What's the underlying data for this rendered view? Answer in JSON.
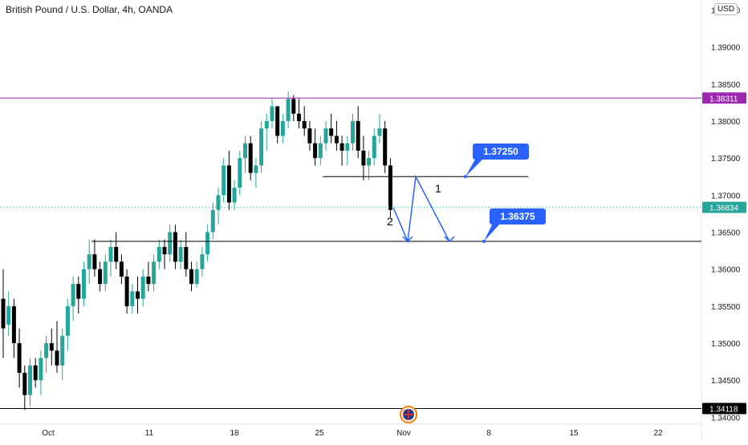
{
  "header": {
    "title": "British Pound / U.S. Dollar, 4h, OANDA",
    "currency": "USD"
  },
  "axis": {
    "y_ticks": [
      "1.34000",
      "1.34500",
      "1.35000",
      "1.35500",
      "1.36000",
      "1.36500",
      "1.37000",
      "1.37500",
      "1.38000",
      "1.38500",
      "1.39000",
      "1.39500"
    ],
    "x_ticks": [
      "Oct",
      "11",
      "18",
      "25",
      "Nov",
      "8",
      "15",
      "22"
    ]
  },
  "price_labels": {
    "resistance": "1.38311",
    "current": "1.36834",
    "support_low": "1.34118"
  },
  "callouts": {
    "level_1": "1.37250",
    "level_2": "1.36375"
  },
  "annotations": {
    "step_1": "1",
    "step_2": "2"
  },
  "colors": {
    "up": "#26a69a",
    "down": "#000000",
    "resistance": "#9c27b0",
    "current": "#26a69a",
    "projection": "#2962ff"
  },
  "chart_data": {
    "type": "candlestick",
    "title": "British Pound / U.S. Dollar, 4h, OANDA",
    "ylim": [
      1.3395,
      1.3957
    ],
    "x_axis": [
      "Oct",
      "11",
      "18",
      "25",
      "Nov",
      "8",
      "15",
      "22"
    ],
    "candles": [
      [
        1.356,
        1.36,
        1.348,
        1.352
      ],
      [
        1.3525,
        1.357,
        1.351,
        1.355
      ],
      [
        1.355,
        1.356,
        1.348,
        1.35
      ],
      [
        1.35,
        1.352,
        1.344,
        1.346
      ],
      [
        1.346,
        1.347,
        1.341,
        1.343
      ],
      [
        1.343,
        1.348,
        1.3415,
        1.347
      ],
      [
        1.347,
        1.348,
        1.344,
        1.345
      ],
      [
        1.345,
        1.349,
        1.343,
        1.348
      ],
      [
        1.348,
        1.351,
        1.346,
        1.35
      ],
      [
        1.35,
        1.352,
        1.347,
        1.349
      ],
      [
        1.349,
        1.353,
        1.346,
        1.347
      ],
      [
        1.347,
        1.352,
        1.345,
        1.351
      ],
      [
        1.351,
        1.356,
        1.349,
        1.355
      ],
      [
        1.355,
        1.359,
        1.353,
        1.358
      ],
      [
        1.358,
        1.359,
        1.354,
        1.356
      ],
      [
        1.356,
        1.361,
        1.355,
        1.36
      ],
      [
        1.36,
        1.364,
        1.358,
        1.362
      ],
      [
        1.362,
        1.364,
        1.359,
        1.36
      ],
      [
        1.36,
        1.361,
        1.357,
        1.358
      ],
      [
        1.358,
        1.362,
        1.357,
        1.361
      ],
      [
        1.361,
        1.364,
        1.359,
        1.363
      ],
      [
        1.363,
        1.365,
        1.36,
        1.361
      ],
      [
        1.361,
        1.362,
        1.358,
        1.359
      ],
      [
        1.359,
        1.36,
        1.354,
        1.355
      ],
      [
        1.355,
        1.358,
        1.354,
        1.357
      ],
      [
        1.357,
        1.359,
        1.354,
        1.356
      ],
      [
        1.356,
        1.36,
        1.355,
        1.359
      ],
      [
        1.359,
        1.361,
        1.357,
        1.358
      ],
      [
        1.358,
        1.362,
        1.357,
        1.361
      ],
      [
        1.361,
        1.364,
        1.36,
        1.363
      ],
      [
        1.363,
        1.364,
        1.36,
        1.362
      ],
      [
        1.362,
        1.366,
        1.361,
        1.365
      ],
      [
        1.365,
        1.366,
        1.36,
        1.361
      ],
      [
        1.361,
        1.364,
        1.36,
        1.363
      ],
      [
        1.363,
        1.365,
        1.359,
        1.36
      ],
      [
        1.36,
        1.361,
        1.357,
        1.358
      ],
      [
        1.358,
        1.361,
        1.3575,
        1.36
      ],
      [
        1.36,
        1.363,
        1.359,
        1.362
      ],
      [
        1.362,
        1.366,
        1.361,
        1.365
      ],
      [
        1.365,
        1.369,
        1.364,
        1.368
      ],
      [
        1.368,
        1.371,
        1.366,
        1.37
      ],
      [
        1.37,
        1.375,
        1.369,
        1.374
      ],
      [
        1.374,
        1.376,
        1.368,
        1.369
      ],
      [
        1.369,
        1.372,
        1.368,
        1.371
      ],
      [
        1.371,
        1.376,
        1.37,
        1.375
      ],
      [
        1.375,
        1.378,
        1.373,
        1.377
      ],
      [
        1.377,
        1.378,
        1.372,
        1.373
      ],
      [
        1.373,
        1.375,
        1.371,
        1.374
      ],
      [
        1.374,
        1.38,
        1.373,
        1.379
      ],
      [
        1.379,
        1.381,
        1.376,
        1.38
      ],
      [
        1.38,
        1.383,
        1.379,
        1.382
      ],
      [
        1.382,
        1.382,
        1.377,
        1.378
      ],
      [
        1.378,
        1.381,
        1.377,
        1.38
      ],
      [
        1.38,
        1.384,
        1.379,
        1.383
      ],
      [
        1.383,
        1.3835,
        1.38,
        1.381
      ],
      [
        1.381,
        1.383,
        1.379,
        1.38
      ],
      [
        1.38,
        1.382,
        1.378,
        1.379
      ],
      [
        1.379,
        1.38,
        1.376,
        1.377
      ],
      [
        1.377,
        1.379,
        1.374,
        1.375
      ],
      [
        1.375,
        1.378,
        1.374,
        1.377
      ],
      [
        1.377,
        1.38,
        1.376,
        1.379
      ],
      [
        1.379,
        1.381,
        1.377,
        1.378
      ],
      [
        1.378,
        1.38,
        1.376,
        1.377
      ],
      [
        1.377,
        1.378,
        1.374,
        1.376
      ],
      [
        1.376,
        1.378,
        1.374,
        1.377
      ],
      [
        1.377,
        1.381,
        1.376,
        1.38
      ],
      [
        1.38,
        1.382,
        1.375,
        1.376
      ],
      [
        1.376,
        1.378,
        1.372,
        1.374
      ],
      [
        1.374,
        1.376,
        1.372,
        1.375
      ],
      [
        1.375,
        1.379,
        1.374,
        1.378
      ],
      [
        1.378,
        1.381,
        1.377,
        1.379
      ],
      [
        1.379,
        1.38,
        1.373,
        1.374
      ],
      [
        1.374,
        1.375,
        1.367,
        1.368
      ]
    ],
    "levels": [
      {
        "name": "resistance",
        "value": 1.38311,
        "style": "solid"
      },
      {
        "name": "level_1",
        "value": 1.3725,
        "style": "solid"
      },
      {
        "name": "current",
        "value": 1.36834,
        "style": "dotted"
      },
      {
        "name": "level_2",
        "value": 1.36375,
        "style": "solid"
      },
      {
        "name": "support_low",
        "value": 1.34118,
        "style": "solid"
      }
    ],
    "projection": [
      [
        "Nov",
        1.36834
      ],
      [
        "Nov",
        1.36375
      ],
      [
        "Nov",
        1.3725
      ],
      [
        "Nov",
        1.36375
      ]
    ]
  }
}
